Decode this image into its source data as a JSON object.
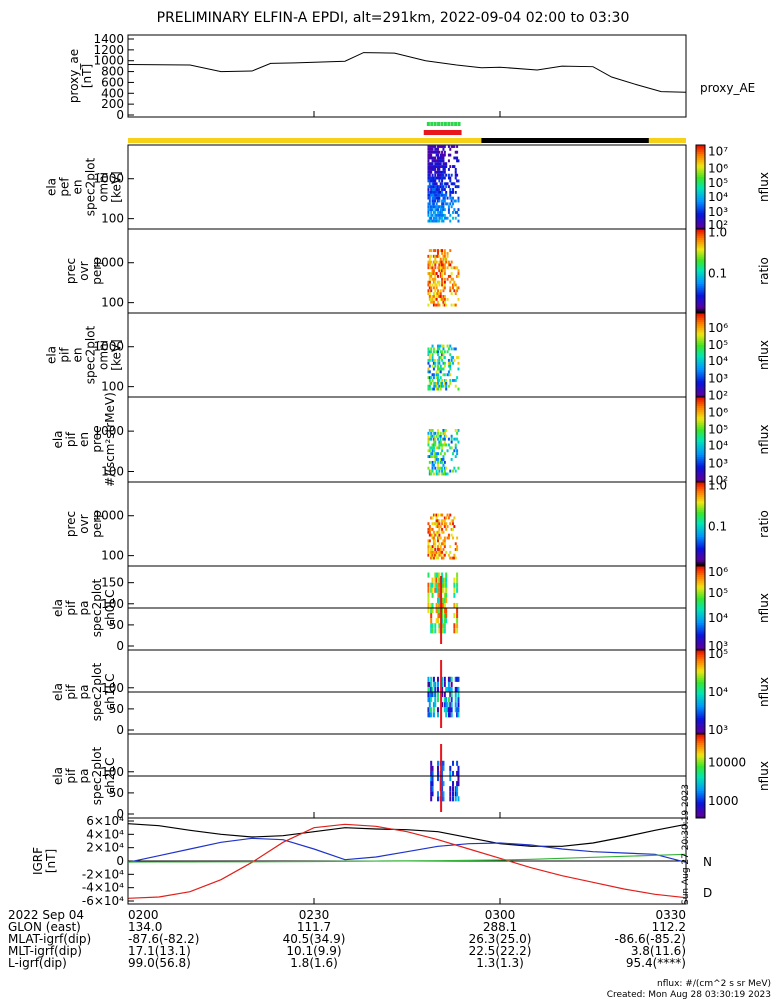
{
  "title": "PRELIMINARY ELFIN-A EPDI, alt=291km, 2022-09-04 02:00 to 03:30",
  "side_stamp": "Sun Aug 27 20:30:19 2023",
  "bottom_note_1": "nflux: #/(cm^2 s sr MeV)",
  "bottom_note_2": "Created: Mon Aug 28 03:30:19 2023",
  "colors": {
    "bar_yellow": "#f7d117",
    "bar_black": "#000000",
    "red_segment": "#e8151c",
    "green_segment": "#2bd64a",
    "igrf_black": "#000000",
    "igrf_blue": "#1f33c9",
    "igrf_red": "#e0201b",
    "igrf_green": "#35b33a"
  },
  "ephemeris": {
    "row_labels": [
      "2022 Sep 04",
      "GLON (east)",
      "MLAT-igrf(dip)",
      "MLT-igrf(dip)",
      "L-igrf(dip)"
    ],
    "columns": [
      {
        "time": "0200",
        "values": [
          "134.0",
          "-87.6(-82.2)",
          "17.1(13.1)",
          "99.0(56.8)"
        ]
      },
      {
        "time": "0230",
        "values": [
          "111.7",
          "40.5(34.9)",
          "10.1(9.9)",
          "1.8(1.6)"
        ]
      },
      {
        "time": "0300",
        "values": [
          "288.1",
          "26.3(25.0)",
          "22.5(22.2)",
          "1.3(1.3)"
        ]
      },
      {
        "time": "0330",
        "values": [
          "112.2",
          "-86.6(-85.2)",
          "3.8(11.6)",
          "95.4(****)"
        ]
      }
    ]
  },
  "chart_data": [
    {
      "type": "line",
      "ylabel": [
        "proxy_ae",
        "[nT]"
      ],
      "ylim": [
        0,
        1400
      ],
      "yticks": [
        "0",
        "200",
        "400",
        "600",
        "800",
        "1000",
        "1200",
        "1400"
      ],
      "legend": "proxy_AE",
      "x_minutes": [
        0,
        10,
        15,
        20,
        23,
        27,
        35,
        38,
        43,
        48,
        53,
        57,
        60,
        66,
        70,
        75,
        78,
        82,
        86,
        90
      ],
      "values": [
        930,
        920,
        800,
        810,
        950,
        960,
        990,
        1150,
        1140,
        1000,
        920,
        870,
        880,
        830,
        900,
        890,
        700,
        560,
        430,
        420
      ]
    },
    {
      "type": "heatmap",
      "ylabel": [
        "ela",
        "pef",
        "en",
        "spec2plot",
        "omni",
        "[keV]"
      ],
      "y_scale": "log",
      "yticks": [
        "100",
        "1000"
      ],
      "colorbar_label": "nflux",
      "colorbar_ticks": [
        "10²",
        "10³",
        "10⁴",
        "10⁵",
        "10⁶",
        "10⁷"
      ]
    },
    {
      "type": "heatmap",
      "ylabel": [
        "prec",
        "ovr",
        "perp"
      ],
      "y_scale": "log",
      "yticks": [
        "100",
        "1000"
      ],
      "colorbar_label": "ratio",
      "colorbar_ticks": [
        "0.1",
        "1.0"
      ]
    },
    {
      "type": "heatmap",
      "ylabel": [
        "ela",
        "pif",
        "en",
        "spec2plot",
        "omni",
        "[keV]"
      ],
      "y_scale": "log",
      "yticks": [
        "100",
        "1000"
      ],
      "colorbar_label": "nflux",
      "colorbar_ticks": [
        "10²",
        "10³",
        "10⁴",
        "10⁵",
        "10⁶"
      ]
    },
    {
      "type": "heatmap",
      "ylabel": [
        "ela",
        "pif",
        "en",
        "prec",
        "#/(scm²strMeV)"
      ],
      "y_scale": "log",
      "yticks": [
        "100",
        "1000"
      ],
      "colorbar_label": "nflux",
      "colorbar_ticks": [
        "10²",
        "10³",
        "10⁴",
        "10⁵",
        "10⁶"
      ]
    },
    {
      "type": "heatmap",
      "ylabel": [
        "prec",
        "ovr",
        "perp"
      ],
      "y_scale": "log",
      "yticks": [
        "100",
        "1000"
      ],
      "colorbar_label": "ratio",
      "colorbar_ticks": [
        "0.1",
        "1.0"
      ]
    },
    {
      "type": "heatmap",
      "ylabel": [
        "ela",
        "pif",
        "pa",
        "spec2plot",
        "ch0LC"
      ],
      "ylim": [
        0,
        180
      ],
      "yticks": [
        "0",
        "50",
        "100",
        "150"
      ],
      "colorbar_label": "nflux",
      "colorbar_ticks": [
        "10³",
        "10⁴",
        "10⁵",
        "10⁶"
      ]
    },
    {
      "type": "heatmap",
      "ylabel": [
        "ela",
        "pif",
        "pa",
        "spec2plot",
        "ch1LC"
      ],
      "ylim": [
        0,
        180
      ],
      "yticks": [
        "0",
        "50",
        "100"
      ],
      "colorbar_label": "nflux",
      "colorbar_ticks": [
        "10³",
        "10⁴",
        "10⁵"
      ]
    },
    {
      "type": "heatmap",
      "ylabel": [
        "ela",
        "pif",
        "pa",
        "spec2plot",
        "ch2LC"
      ],
      "ylim": [
        0,
        180
      ],
      "yticks": [
        "0",
        "50",
        "100"
      ],
      "colorbar_label": "nflux",
      "colorbar_ticks": [
        "1000",
        "10000"
      ]
    },
    {
      "type": "line",
      "ylabel": [
        "IGRF",
        "[nT]"
      ],
      "ylim": [
        -60000,
        60000
      ],
      "yticks": [
        "-6×10⁴",
        "-4×10⁴",
        "-2×10⁴",
        "0",
        "2×10⁴",
        "4×10⁴",
        "6×10⁴"
      ],
      "x": [
        0,
        5,
        10,
        15,
        20,
        25,
        30,
        35,
        40,
        45,
        50,
        55,
        60,
        65,
        70,
        75,
        80,
        85,
        90
      ],
      "series": [
        {
          "key": "black",
          "values": [
            56000,
            53000,
            46000,
            40000,
            36000,
            38000,
            44000,
            50000,
            48000,
            47000,
            44000,
            35000,
            26000,
            22000,
            22000,
            27000,
            36000,
            46000,
            55000
          ]
        },
        {
          "key": "blue",
          "values": [
            -2000,
            8000,
            18000,
            28000,
            34000,
            32000,
            18000,
            2000,
            6000,
            14000,
            22000,
            26000,
            27000,
            24000,
            18000,
            14000,
            12000,
            10000,
            -2000
          ]
        },
        {
          "key": "red",
          "values": [
            -56000,
            -54000,
            -46000,
            -28000,
            -2000,
            28000,
            50000,
            55000,
            52000,
            44000,
            32000,
            18000,
            4000,
            -10000,
            -22000,
            -32000,
            -42000,
            -50000,
            -55000
          ]
        },
        {
          "key": "green",
          "name": "N",
          "values": [
            -1500,
            -1400,
            -1300,
            -1200,
            -1100,
            -900,
            -700,
            -400,
            -100,
            200,
            500,
            900,
            1500,
            2500,
            4000,
            5500,
            7000,
            8500,
            10000
          ]
        }
      ],
      "end_labels": [
        "N",
        "D"
      ]
    }
  ]
}
